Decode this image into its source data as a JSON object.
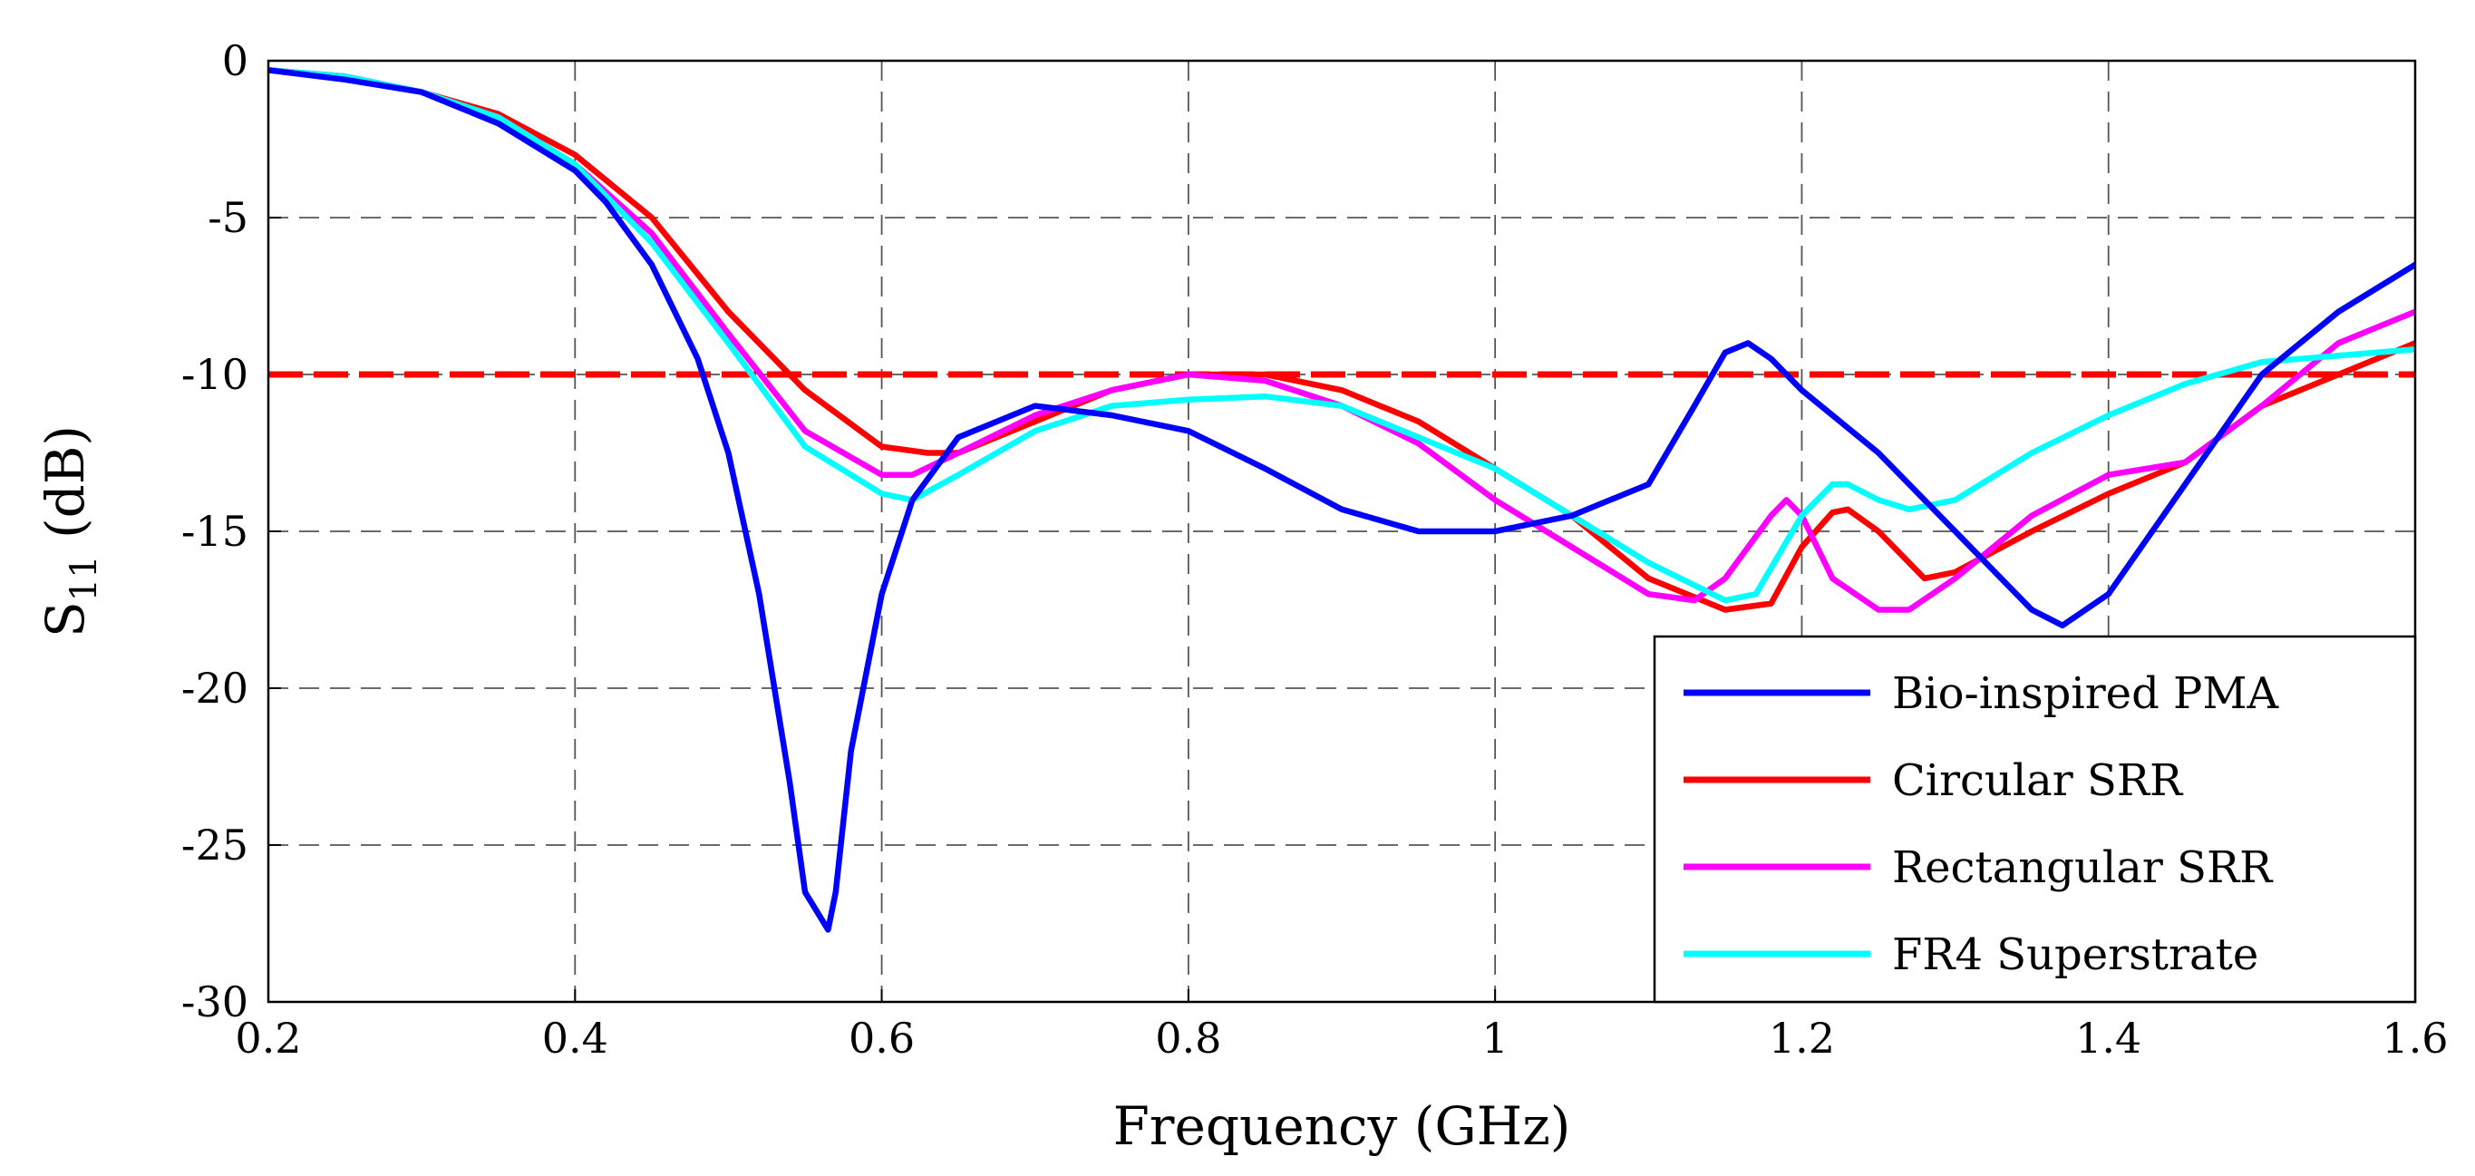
{
  "chart_data": {
    "type": "line",
    "title": "",
    "xlabel": "Frequency (GHz)",
    "ylabel": {
      "base": "S",
      "subscript": "11",
      "suffix": " (dB)"
    },
    "xlim": [
      0.2,
      1.6
    ],
    "ylim": [
      -30,
      0
    ],
    "xticks": [
      0.2,
      0.4,
      0.6,
      0.8,
      1.0,
      1.2,
      1.4,
      1.6
    ],
    "xtick_labels": [
      "0.2",
      "0.4",
      "0.6",
      "0.8",
      "1",
      "1.2",
      "1.4",
      "1.6"
    ],
    "yticks": [
      0,
      -5,
      -10,
      -15,
      -20,
      -25,
      -30
    ],
    "ytick_labels": [
      "0",
      "-5",
      "-10",
      "-15",
      "-20",
      "-25",
      "-30"
    ],
    "grid": true,
    "legend_position": "bottom-right",
    "reference_line": {
      "y": -10,
      "color": "#ff0000",
      "style": "dashed"
    },
    "series": [
      {
        "name": "Bio-inspired PMA",
        "color": "#0000ff",
        "x": [
          0.2,
          0.25,
          0.3,
          0.35,
          0.4,
          0.42,
          0.45,
          0.48,
          0.5,
          0.52,
          0.54,
          0.55,
          0.56,
          0.565,
          0.57,
          0.58,
          0.6,
          0.62,
          0.65,
          0.7,
          0.75,
          0.8,
          0.85,
          0.9,
          0.95,
          1.0,
          1.05,
          1.1,
          1.13,
          1.15,
          1.165,
          1.18,
          1.2,
          1.25,
          1.3,
          1.35,
          1.37,
          1.4,
          1.45,
          1.5,
          1.55,
          1.6
        ],
        "y": [
          -0.3,
          -0.6,
          -1.0,
          -2.0,
          -3.5,
          -4.5,
          -6.5,
          -9.5,
          -12.5,
          -17,
          -23,
          -26.5,
          -27.3,
          -27.7,
          -26.5,
          -22,
          -17,
          -14,
          -12,
          -11,
          -11.3,
          -11.8,
          -13,
          -14.3,
          -15,
          -15,
          -14.5,
          -13.5,
          -11,
          -9.3,
          -9,
          -9.5,
          -10.5,
          -12.5,
          -15,
          -17.5,
          -18,
          -17,
          -13.5,
          -10,
          -8,
          -6.5
        ]
      },
      {
        "name": "Circular SRR",
        "color": "#ff0000",
        "x": [
          0.2,
          0.25,
          0.3,
          0.35,
          0.4,
          0.45,
          0.5,
          0.55,
          0.6,
          0.63,
          0.65,
          0.7,
          0.75,
          0.8,
          0.85,
          0.9,
          0.95,
          1.0,
          1.05,
          1.1,
          1.15,
          1.18,
          1.2,
          1.22,
          1.23,
          1.25,
          1.28,
          1.3,
          1.35,
          1.4,
          1.45,
          1.5,
          1.55,
          1.6
        ],
        "y": [
          -0.3,
          -0.5,
          -1.0,
          -1.7,
          -3.0,
          -5.0,
          -8.0,
          -10.5,
          -12.3,
          -12.5,
          -12.5,
          -11.5,
          -10.5,
          -10,
          -10,
          -10.5,
          -11.5,
          -13,
          -14.5,
          -16.5,
          -17.5,
          -17.3,
          -15.5,
          -14.4,
          -14.3,
          -15,
          -16.5,
          -16.3,
          -15,
          -13.8,
          -12.8,
          -11,
          -10,
          -9
        ]
      },
      {
        "name": "Rectangular SRR",
        "color": "#ff00ff",
        "x": [
          0.2,
          0.25,
          0.3,
          0.35,
          0.4,
          0.45,
          0.5,
          0.55,
          0.6,
          0.62,
          0.65,
          0.7,
          0.75,
          0.8,
          0.85,
          0.9,
          0.95,
          1.0,
          1.05,
          1.1,
          1.13,
          1.15,
          1.18,
          1.19,
          1.2,
          1.22,
          1.25,
          1.27,
          1.3,
          1.35,
          1.4,
          1.45,
          1.5,
          1.55,
          1.6
        ],
        "y": [
          -0.3,
          -0.5,
          -1.0,
          -1.8,
          -3.3,
          -5.5,
          -8.7,
          -11.8,
          -13.2,
          -13.2,
          -12.5,
          -11.3,
          -10.5,
          -10,
          -10.2,
          -11,
          -12.2,
          -14,
          -15.5,
          -17,
          -17.2,
          -16.5,
          -14.5,
          -14,
          -14.5,
          -16.5,
          -17.5,
          -17.5,
          -16.5,
          -14.5,
          -13.2,
          -12.8,
          -11,
          -9,
          -8
        ]
      },
      {
        "name": "FR4 Superstrate",
        "color": "#00ffff",
        "x": [
          0.2,
          0.25,
          0.3,
          0.35,
          0.4,
          0.45,
          0.5,
          0.55,
          0.6,
          0.62,
          0.65,
          0.7,
          0.75,
          0.8,
          0.85,
          0.9,
          0.95,
          1.0,
          1.05,
          1.1,
          1.15,
          1.17,
          1.2,
          1.22,
          1.23,
          1.25,
          1.27,
          1.3,
          1.35,
          1.4,
          1.45,
          1.5,
          1.55,
          1.6
        ],
        "y": [
          -0.3,
          -0.5,
          -1.0,
          -1.8,
          -3.3,
          -5.8,
          -9.0,
          -12.3,
          -13.8,
          -14,
          -13.2,
          -11.8,
          -11,
          -10.8,
          -10.7,
          -11,
          -12,
          -13,
          -14.5,
          -16,
          -17.2,
          -17,
          -14.5,
          -13.5,
          -13.5,
          -14,
          -14.3,
          -14,
          -12.5,
          -11.3,
          -10.3,
          -9.6,
          -9.4,
          -9.2
        ]
      }
    ]
  }
}
